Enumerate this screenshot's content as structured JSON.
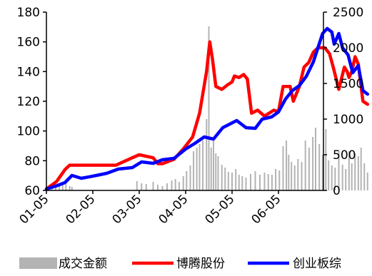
{
  "chart_data": {
    "type": "line",
    "title": "",
    "xlabel": "",
    "ylabel": "",
    "x_ticks": [
      "01-05",
      "02-05",
      "03-05",
      "04-05",
      "05-05",
      "06-05"
    ],
    "y_left": {
      "min": 60,
      "max": 180,
      "ticks": [
        60,
        80,
        100,
        120,
        140,
        160,
        180
      ]
    },
    "y_right": {
      "min": 0,
      "max": 2500,
      "ticks": [
        0,
        500,
        1000,
        1500,
        2000,
        2500
      ]
    },
    "legend_position": "bottom",
    "legend": [
      {
        "name": "成交金额",
        "kind": "bar",
        "color": "#b3b3b3"
      },
      {
        "name": "博腾股份",
        "kind": "line",
        "color": "#ff0000"
      },
      {
        "name": "创业板综",
        "kind": "line",
        "color": "#0000ff"
      }
    ],
    "series": [
      {
        "name": "博腾股份",
        "axis": "left",
        "color": "#ff0000",
        "points": [
          [
            0,
            61
          ],
          [
            0.22,
            66
          ],
          [
            0.4,
            74
          ],
          [
            0.5,
            77
          ],
          [
            1.0,
            77
          ],
          [
            1.5,
            77
          ],
          [
            1.85,
            82
          ],
          [
            2.0,
            84
          ],
          [
            2.3,
            82
          ],
          [
            2.4,
            78
          ],
          [
            2.5,
            78
          ],
          [
            2.75,
            81
          ],
          [
            2.95,
            88
          ],
          [
            3.15,
            96
          ],
          [
            3.3,
            112
          ],
          [
            3.45,
            140
          ],
          [
            3.52,
            160
          ],
          [
            3.58,
            148
          ],
          [
            3.65,
            130
          ],
          [
            3.78,
            128
          ],
          [
            3.9,
            131
          ],
          [
            4.0,
            133
          ],
          [
            4.05,
            137
          ],
          [
            4.15,
            136
          ],
          [
            4.25,
            138
          ],
          [
            4.33,
            135
          ],
          [
            4.42,
            112
          ],
          [
            4.55,
            114
          ],
          [
            4.7,
            110
          ],
          [
            4.9,
            114
          ],
          [
            5.0,
            113
          ],
          [
            5.1,
            130
          ],
          [
            5.25,
            130
          ],
          [
            5.32,
            120
          ],
          [
            5.45,
            130
          ],
          [
            5.55,
            143
          ],
          [
            5.65,
            146
          ],
          [
            5.75,
            153
          ],
          [
            5.85,
            156
          ],
          [
            6.0,
            156
          ],
          [
            6.1,
            152
          ],
          [
            6.18,
            143
          ],
          [
            6.3,
            128
          ],
          [
            6.42,
            143
          ],
          [
            6.48,
            140
          ],
          [
            6.52,
            136
          ],
          [
            6.58,
            140
          ],
          [
            6.65,
            150
          ],
          [
            6.72,
            145
          ],
          [
            6.82,
            120
          ],
          [
            6.92,
            118
          ]
        ]
      },
      {
        "name": "创业板综",
        "axis": "right",
        "color": "#0000ff",
        "points": [
          [
            0,
            20
          ],
          [
            0.2,
            60
          ],
          [
            0.4,
            110
          ],
          [
            0.55,
            210
          ],
          [
            0.75,
            170
          ],
          [
            1.0,
            200
          ],
          [
            1.3,
            240
          ],
          [
            1.55,
            300
          ],
          [
            1.85,
            320
          ],
          [
            2.05,
            400
          ],
          [
            2.3,
            380
          ],
          [
            2.5,
            430
          ],
          [
            2.75,
            450
          ],
          [
            3.0,
            580
          ],
          [
            3.2,
            660
          ],
          [
            3.4,
            750
          ],
          [
            3.6,
            720
          ],
          [
            3.8,
            880
          ],
          [
            3.95,
            930
          ],
          [
            4.1,
            980
          ],
          [
            4.3,
            880
          ],
          [
            4.5,
            870
          ],
          [
            4.65,
            1000
          ],
          [
            4.85,
            1030
          ],
          [
            5.0,
            1100
          ],
          [
            5.15,
            1280
          ],
          [
            5.3,
            1400
          ],
          [
            5.45,
            1470
          ],
          [
            5.6,
            1600
          ],
          [
            5.75,
            1800
          ],
          [
            5.85,
            2000
          ],
          [
            5.95,
            2200
          ],
          [
            6.05,
            2270
          ],
          [
            6.15,
            2220
          ],
          [
            6.2,
            2050
          ],
          [
            6.3,
            2200
          ],
          [
            6.38,
            2000
          ],
          [
            6.5,
            1900
          ],
          [
            6.6,
            1650
          ],
          [
            6.72,
            1750
          ],
          [
            6.82,
            1400
          ],
          [
            6.92,
            1350
          ]
        ]
      },
      {
        "name": "成交金额",
        "axis": "right",
        "color": "#b3b3b3",
        "bar_width": 0.03,
        "points": [
          [
            0.05,
            40
          ],
          [
            0.12,
            70
          ],
          [
            0.2,
            80
          ],
          [
            0.28,
            60
          ],
          [
            0.35,
            120
          ],
          [
            0.42,
            90
          ],
          [
            0.5,
            60
          ],
          [
            0.55,
            50
          ],
          [
            1.95,
            130
          ],
          [
            2.05,
            100
          ],
          [
            2.15,
            90
          ],
          [
            2.3,
            120
          ],
          [
            2.4,
            80
          ],
          [
            2.5,
            60
          ],
          [
            2.6,
            100
          ],
          [
            2.7,
            140
          ],
          [
            2.78,
            160
          ],
          [
            2.86,
            120
          ],
          [
            2.95,
            200
          ],
          [
            3.02,
            270
          ],
          [
            3.1,
            350
          ],
          [
            3.17,
            550
          ],
          [
            3.24,
            600
          ],
          [
            3.3,
            650
          ],
          [
            3.37,
            700
          ],
          [
            3.45,
            1000
          ],
          [
            3.5,
            2300
          ],
          [
            3.55,
            600
          ],
          [
            3.6,
            700
          ],
          [
            3.65,
            520
          ],
          [
            3.7,
            480
          ],
          [
            3.78,
            360
          ],
          [
            3.85,
            320
          ],
          [
            3.92,
            260
          ],
          [
            4.0,
            250
          ],
          [
            4.08,
            300
          ],
          [
            4.15,
            220
          ],
          [
            4.22,
            200
          ],
          [
            4.3,
            180
          ],
          [
            4.4,
            230
          ],
          [
            4.5,
            270
          ],
          [
            4.6,
            220
          ],
          [
            4.7,
            250
          ],
          [
            4.78,
            230
          ],
          [
            4.86,
            220
          ],
          [
            4.94,
            300
          ],
          [
            5.02,
            280
          ],
          [
            5.1,
            620
          ],
          [
            5.17,
            700
          ],
          [
            5.22,
            500
          ],
          [
            5.28,
            400
          ],
          [
            5.35,
            350
          ],
          [
            5.42,
            440
          ],
          [
            5.5,
            400
          ],
          [
            5.58,
            700
          ],
          [
            5.66,
            600
          ],
          [
            5.74,
            750
          ],
          [
            5.8,
            880
          ],
          [
            5.88,
            650
          ],
          [
            5.95,
            500
          ],
          [
            6.02,
            860
          ],
          [
            6.08,
            420
          ],
          [
            6.15,
            350
          ],
          [
            6.22,
            320
          ],
          [
            6.3,
            560
          ],
          [
            6.38,
            360
          ],
          [
            6.45,
            300
          ],
          [
            6.52,
            550
          ],
          [
            6.58,
            380
          ],
          [
            6.65,
            520
          ],
          [
            6.72,
            480
          ],
          [
            6.78,
            600
          ],
          [
            6.85,
            380
          ],
          [
            6.92,
            250
          ]
        ]
      }
    ]
  }
}
